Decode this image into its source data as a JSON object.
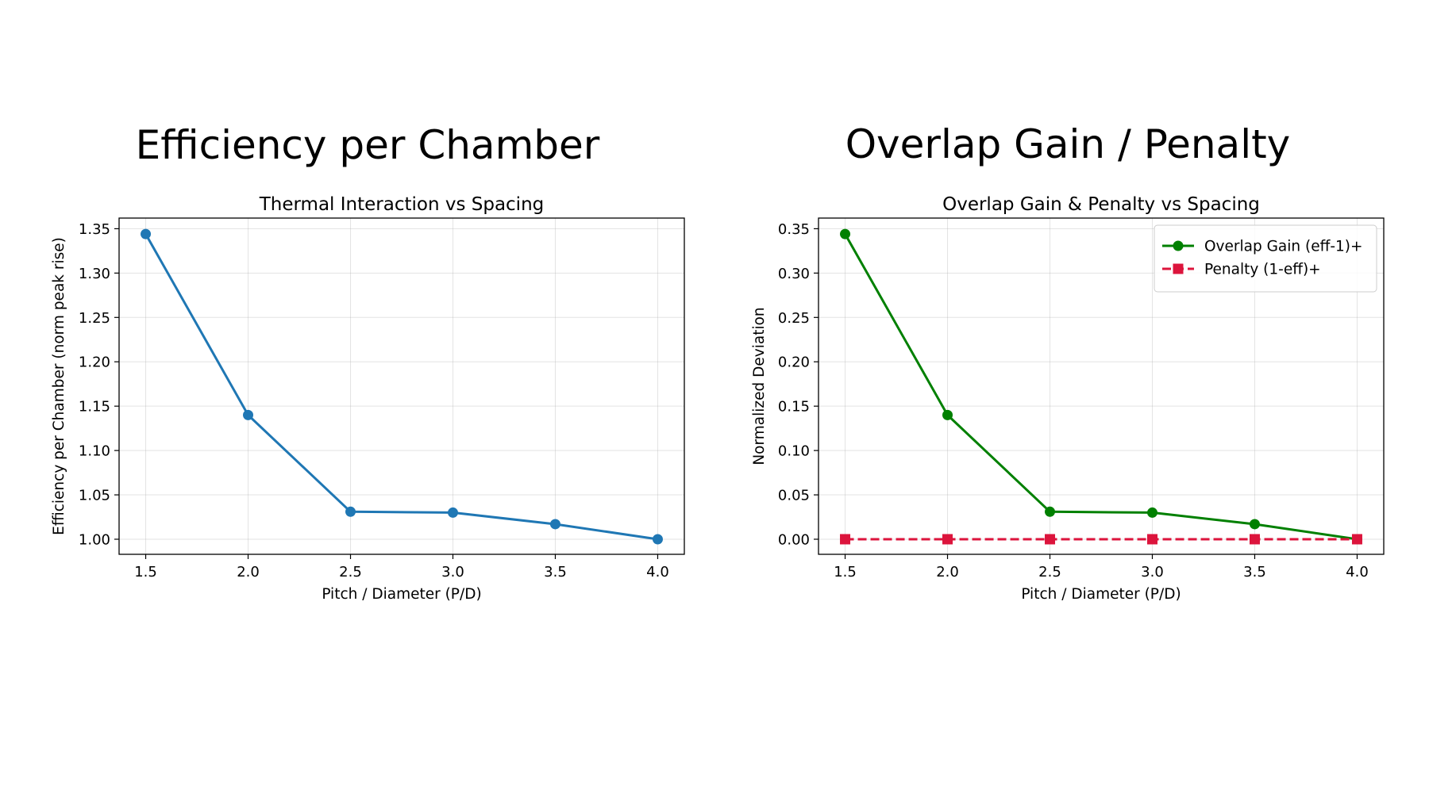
{
  "panels": [
    {
      "heading": "Efficiency per Chamber"
    },
    {
      "heading": "Overlap Gain / Penalty"
    }
  ],
  "chart_data": [
    {
      "type": "line",
      "title": "Thermal Interaction vs Spacing",
      "xlabel": "Pitch / Diameter (P/D)",
      "ylabel": "Efficiency per Chamber (norm peak rise)",
      "x": [
        1.5,
        2.0,
        2.5,
        3.0,
        3.5,
        4.0
      ],
      "xticks": [
        "1.5",
        "2.0",
        "2.5",
        "3.0",
        "3.5",
        "4.0"
      ],
      "yticks": [
        "1.00",
        "1.05",
        "1.10",
        "1.15",
        "1.20",
        "1.25",
        "1.30",
        "1.35"
      ],
      "xlim": [
        1.37,
        4.13
      ],
      "ylim": [
        0.983,
        1.362
      ],
      "grid": true,
      "series": [
        {
          "values": [
            1.344,
            1.14,
            1.031,
            1.03,
            1.017,
            1.0
          ],
          "color": "#1f77b4",
          "marker": "circle",
          "linestyle": "solid"
        }
      ]
    },
    {
      "type": "line",
      "title": "Overlap Gain & Penalty vs Spacing",
      "xlabel": "Pitch / Diameter (P/D)",
      "ylabel": "Normalized Deviation",
      "x": [
        1.5,
        2.0,
        2.5,
        3.0,
        3.5,
        4.0
      ],
      "xticks": [
        "1.5",
        "2.0",
        "2.5",
        "3.0",
        "3.5",
        "4.0"
      ],
      "yticks": [
        "0.00",
        "0.05",
        "0.10",
        "0.15",
        "0.20",
        "0.25",
        "0.30",
        "0.35"
      ],
      "xlim": [
        1.37,
        4.13
      ],
      "ylim": [
        -0.017,
        0.362
      ],
      "grid": true,
      "legend": "top-right",
      "series": [
        {
          "name": "Overlap Gain (eff-1)+",
          "values": [
            0.344,
            0.14,
            0.031,
            0.03,
            0.017,
            0.0
          ],
          "color": "#008000",
          "marker": "circle",
          "linestyle": "solid"
        },
        {
          "name": "Penalty (1-eff)+",
          "values": [
            0,
            0,
            0,
            0,
            0,
            0
          ],
          "color": "#dc143c",
          "marker": "square",
          "linestyle": "dashed"
        }
      ]
    }
  ]
}
